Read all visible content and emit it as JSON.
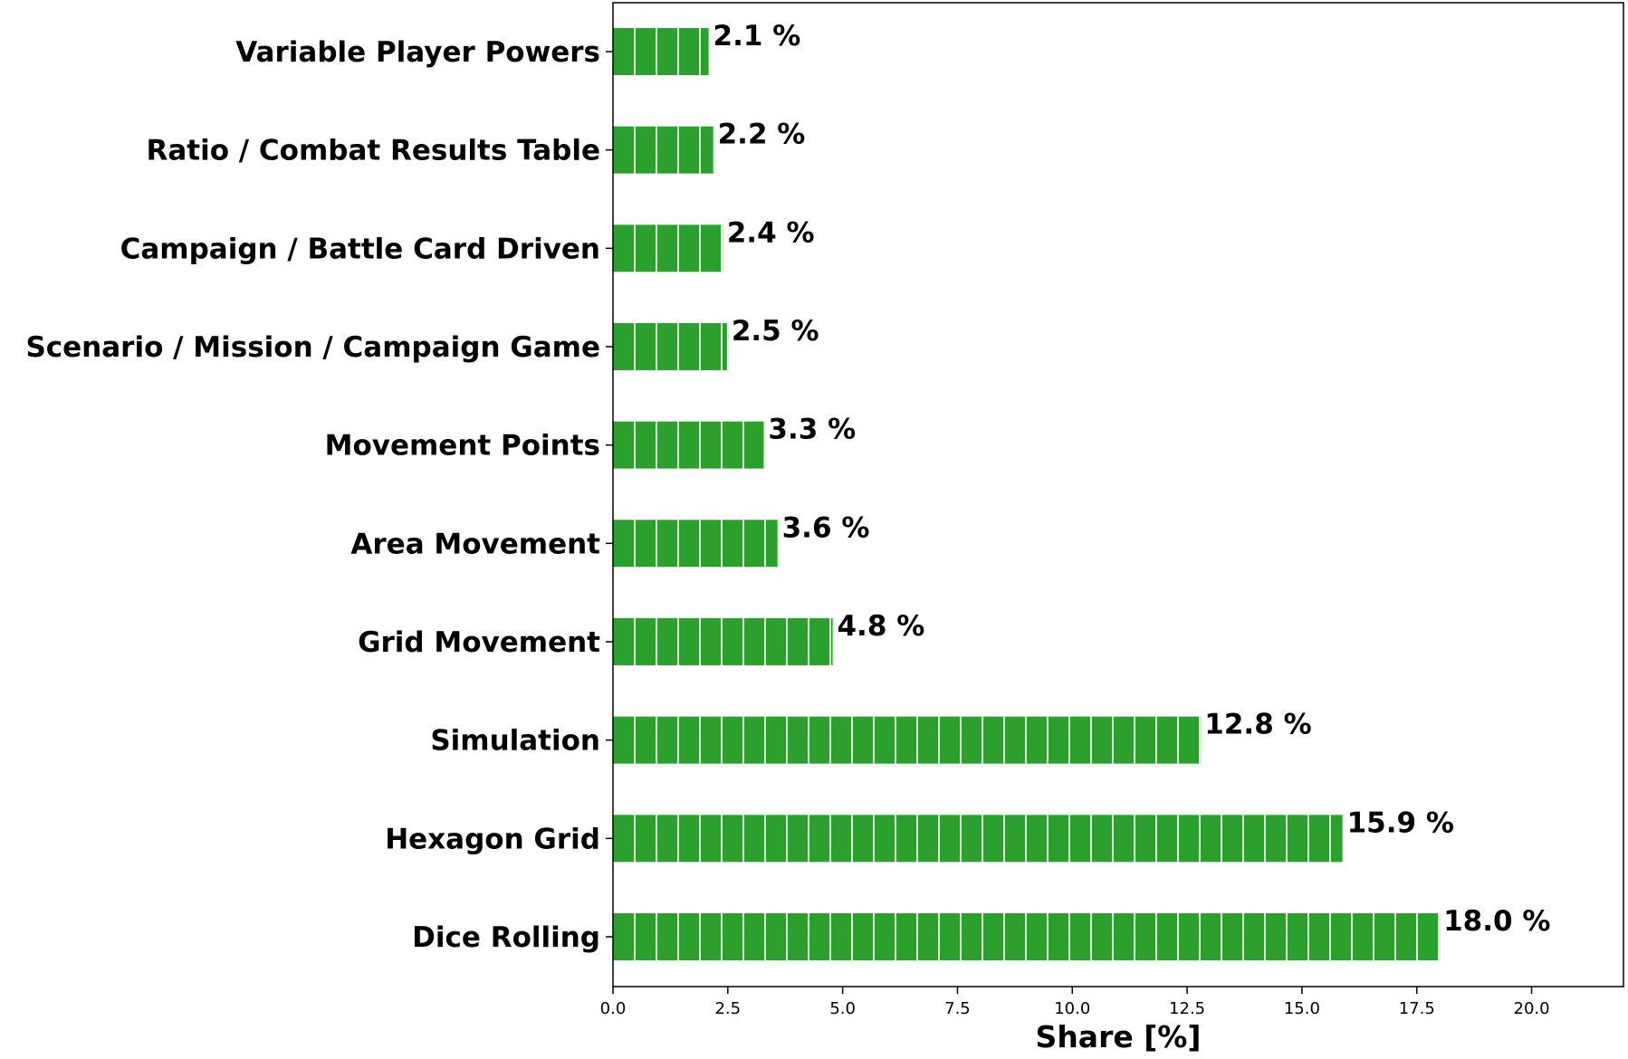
{
  "chart_data": {
    "type": "bar",
    "orientation": "horizontal",
    "categories": [
      "Dice Rolling",
      "Hexagon Grid",
      "Simulation",
      "Grid Movement",
      "Area Movement",
      "Movement Points",
      "Scenario / Mission / Campaign Game",
      "Campaign / Battle Card Driven",
      "Ratio / Combat Results Table",
      "Variable Player Powers"
    ],
    "values": [
      18.0,
      15.9,
      12.8,
      4.8,
      3.6,
      3.3,
      2.5,
      2.4,
      2.2,
      2.1
    ],
    "value_labels": [
      "18.0 %",
      "15.9 %",
      "12.8 %",
      "4.8 %",
      "3.6 %",
      "3.3 %",
      "2.5 %",
      "2.4 %",
      "2.2 %",
      "2.1 %"
    ],
    "xlabel": "Share [%]",
    "ylabel": "",
    "xlim": [
      0,
      22
    ],
    "xticks": [
      0.0,
      2.5,
      5.0,
      7.5,
      10.0,
      12.5,
      15.0,
      17.5,
      20.0
    ],
    "xtick_labels": [
      "0.0",
      "2.5",
      "5.0",
      "7.5",
      "10.0",
      "12.5",
      "15.0",
      "17.5",
      "20.0"
    ],
    "grid": false,
    "bar_color": "#2ca02c",
    "bar_edge_color": "#d8f0d8"
  }
}
